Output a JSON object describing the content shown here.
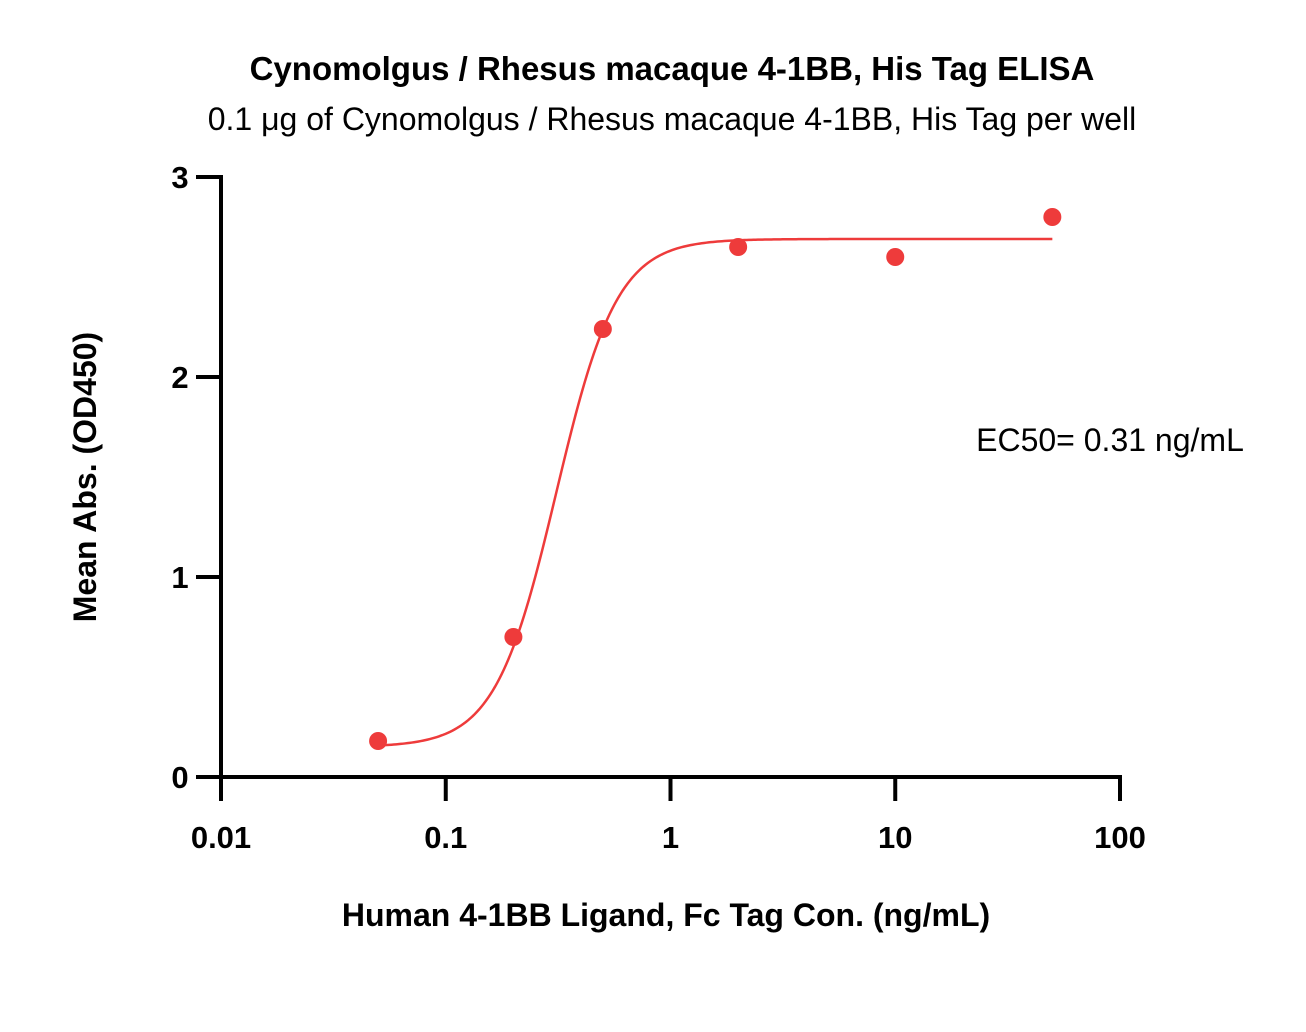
{
  "chart_data": {
    "type": "scatter",
    "title": "Cynomolgus / Rhesus macaque 4-1BB, His Tag ELISA",
    "subtitle": "0.1 μg of Cynomolgus / Rhesus macaque 4-1BB, His Tag per well",
    "xlabel": "Human 4-1BB Ligand, Fc Tag Con. (ng/mL)",
    "ylabel": "Mean Abs. (OD450)",
    "xscale": "log",
    "xlim": [
      0.01,
      100
    ],
    "ylim": [
      0,
      3
    ],
    "xticks": [
      {
        "value": 0.01,
        "label": "0.01"
      },
      {
        "value": 0.1,
        "label": "0.1"
      },
      {
        "value": 1,
        "label": "1"
      },
      {
        "value": 10,
        "label": "10"
      },
      {
        "value": 100,
        "label": "100"
      }
    ],
    "yticks": [
      {
        "value": 0,
        "label": "0"
      },
      {
        "value": 1,
        "label": "1"
      },
      {
        "value": 2,
        "label": "2"
      },
      {
        "value": 3,
        "label": "3"
      }
    ],
    "grid": false,
    "color": "#ee3b3b",
    "points": [
      {
        "x": 0.05,
        "y": 0.18
      },
      {
        "x": 0.2,
        "y": 0.7
      },
      {
        "x": 0.5,
        "y": 2.24
      },
      {
        "x": 2,
        "y": 2.65
      },
      {
        "x": 10,
        "y": 2.6
      },
      {
        "x": 50,
        "y": 2.8
      }
    ],
    "fit_curve": {
      "model": "4PL",
      "bottom": 0.15,
      "top": 2.69,
      "ec50": 0.31,
      "hill": 3.2,
      "x_range": [
        0.05,
        50
      ]
    },
    "annotation": "EC50= 0.31 ng/mL"
  }
}
